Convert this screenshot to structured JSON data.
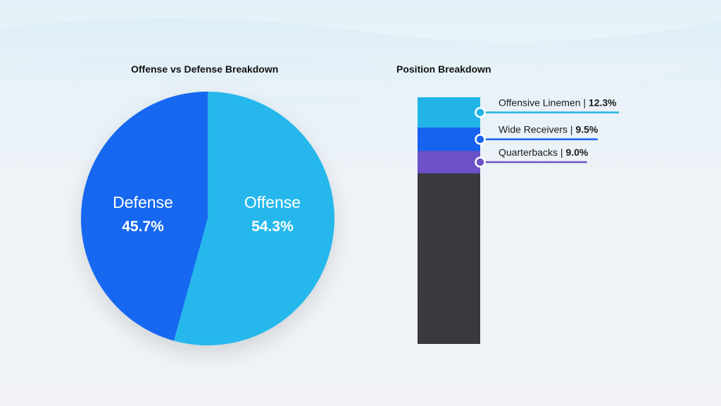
{
  "chart_data": [
    {
      "type": "pie",
      "title": "Offense vs Defense Breakdown",
      "slices": [
        {
          "label": "Offense",
          "value": 54.3,
          "display": "54.3%",
          "color": "#25b8ec"
        },
        {
          "label": "Defense",
          "value": 45.7,
          "display": "45.7%",
          "color": "#1468f0"
        }
      ]
    },
    {
      "type": "bar",
      "title": "Position Breakdown",
      "stacked": true,
      "total": 100,
      "segments": [
        {
          "label": "Offensive Linemen",
          "value": 12.3,
          "display": "12.3%",
          "color": "#22b4e6"
        },
        {
          "label": "Wide Receivers",
          "value": 9.5,
          "display": "9.5%",
          "color": "#1563ee"
        },
        {
          "label": "Quarterbacks",
          "value": 9.0,
          "display": "9.0%",
          "color": "#6c51c8"
        }
      ],
      "remainder_color": "#3a3a3e"
    }
  ]
}
